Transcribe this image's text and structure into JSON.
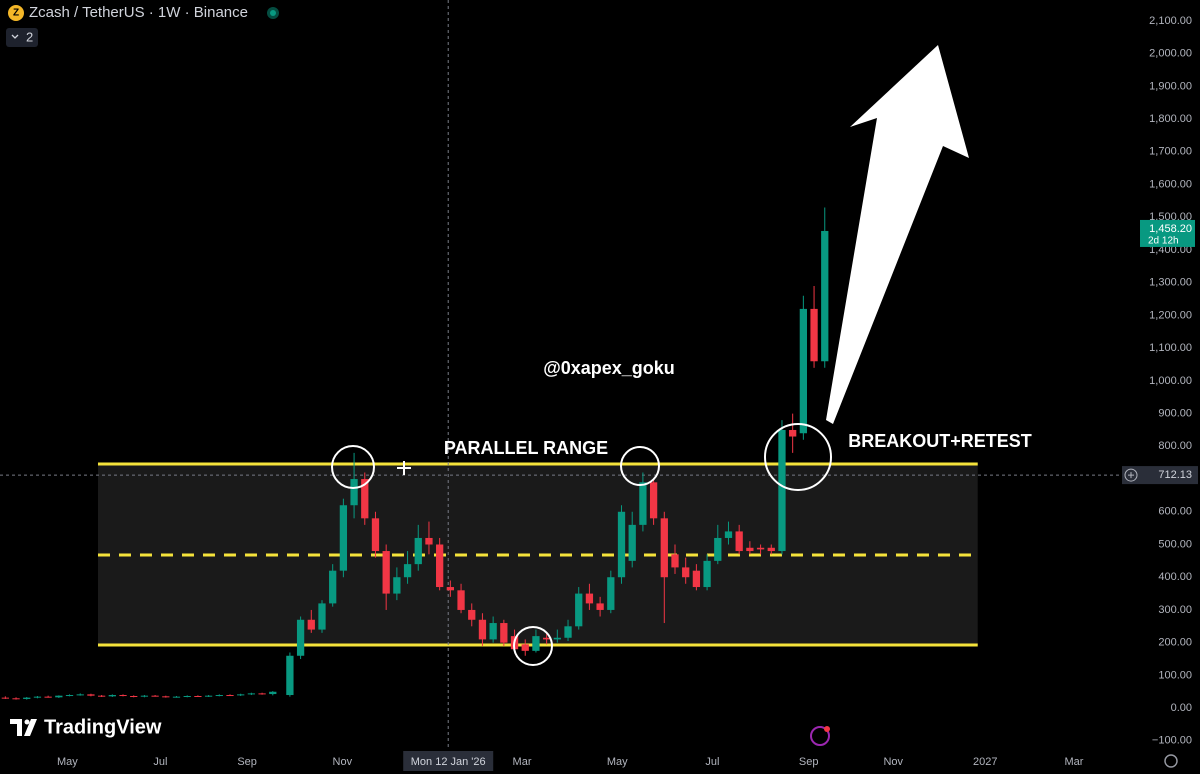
{
  "chart_data": {
    "type": "candlestick",
    "title": "Zcash / TetherUS · 1W · Binance",
    "indicator_count": "2",
    "watermark": "@0xapex_goku",
    "brand": "TradingView",
    "annotations": {
      "range": "PARALLEL RANGE",
      "breakout": "BREAKOUT+RETEST"
    },
    "range_lines": {
      "top": 746,
      "middle": 468,
      "bottom": 193,
      "x_start": 9.16,
      "x_end": 91.4
    },
    "colors": {
      "up": "#089981",
      "down": "#f23645",
      "range": "#f5e33b"
    },
    "xlim": [
      0,
      104.7
    ],
    "xticks": [
      {
        "value": 6.3,
        "label": "May"
      },
      {
        "value": 15.0,
        "label": "Jul"
      },
      {
        "value": 23.1,
        "label": "Sep"
      },
      {
        "value": 32.0,
        "label": "Nov"
      },
      {
        "value": 48.8,
        "label": "Mar"
      },
      {
        "value": 57.7,
        "label": "May"
      },
      {
        "value": 66.6,
        "label": "Jul"
      },
      {
        "value": 75.6,
        "label": "Sep"
      },
      {
        "value": 83.5,
        "label": "Nov"
      },
      {
        "value": 92.1,
        "label": "2027"
      },
      {
        "value": 100.4,
        "label": "Mar"
      }
    ],
    "ylim": [
      -128,
      2164
    ],
    "yticks": [
      {
        "value": 2100,
        "label": "2,100.00"
      },
      {
        "value": 2000,
        "label": "2,000.00"
      },
      {
        "value": 1900,
        "label": "1,900.00"
      },
      {
        "value": 1800,
        "label": "1,800.00"
      },
      {
        "value": 1700,
        "label": "1,700.00"
      },
      {
        "value": 1600,
        "label": "1,600.00"
      },
      {
        "value": 1500,
        "label": "1,500.00"
      },
      {
        "value": 1400,
        "label": "1,400.00"
      },
      {
        "value": 1300,
        "label": "1,300.00"
      },
      {
        "value": 1200,
        "label": "1,200.00"
      },
      {
        "value": 1100,
        "label": "1,100.00"
      },
      {
        "value": 1000,
        "label": "1,000.00"
      },
      {
        "value": 900,
        "label": "900.00"
      },
      {
        "value": 800,
        "label": "800.00"
      },
      {
        "value": 700,
        "label": "700.00"
      },
      {
        "value": 600,
        "label": "600.00"
      },
      {
        "value": 500,
        "label": "500.00"
      },
      {
        "value": 400,
        "label": "400.00"
      },
      {
        "value": 300,
        "label": "300.00"
      },
      {
        "value": 200,
        "label": "200.00"
      },
      {
        "value": 100,
        "label": "100.00"
      },
      {
        "value": 0,
        "label": "0.00"
      },
      {
        "value": -100,
        "label": "−100.00"
      }
    ],
    "crosshair": {
      "x": 41.9,
      "x_label": "Mon 12 Jan '26",
      "y": 712.13
    },
    "last_price": {
      "value": 1458.2,
      "label": "1,458.20",
      "countdown": "2d 12h"
    },
    "x": [
      0.5,
      1.5,
      2.5,
      3.5,
      4.5,
      5.5,
      6.5,
      7.5,
      8.5,
      9.5,
      10.5,
      11.5,
      12.5,
      13.5,
      14.5,
      15.5,
      16.5,
      17.5,
      18.5,
      19.5,
      20.5,
      21.5,
      22.5,
      23.5,
      24.5,
      25.5,
      27.1,
      28.1,
      29.1,
      30.1,
      31.1,
      32.1,
      33.1,
      34.1,
      35.1,
      36.1,
      37.1,
      38.1,
      39.1,
      40.1,
      41.1,
      42.1,
      43.1,
      44.1,
      45.1,
      46.1,
      47.1,
      48.1,
      49.1,
      50.1,
      51.1,
      52.1,
      53.1,
      54.1,
      55.1,
      56.1,
      57.1,
      58.1,
      59.1,
      60.1,
      61.1,
      62.1,
      63.1,
      64.1,
      65.1,
      66.1,
      67.1,
      68.1,
      69.1,
      70.1,
      71.1,
      72.1,
      73.1,
      74.1,
      75.1,
      76.1,
      77.1
    ],
    "open": [
      32,
      30,
      28,
      32,
      35,
      33,
      38,
      40,
      42,
      38,
      36,
      40,
      37,
      35,
      38,
      36,
      34,
      35,
      37,
      36,
      38,
      40,
      39,
      42,
      45,
      43,
      40,
      160,
      270,
      240,
      320,
      420,
      620,
      700,
      580,
      480,
      350,
      400,
      440,
      520,
      500,
      370,
      360,
      300,
      270,
      210,
      260,
      220,
      195,
      175,
      215,
      210,
      215,
      250,
      350,
      320,
      300,
      400,
      450,
      560,
      690,
      580,
      470,
      430,
      420,
      370,
      450,
      520,
      540,
      490,
      490,
      490,
      480,
      850,
      840,
      1220,
      1060
    ],
    "high": [
      36,
      33,
      34,
      37,
      38,
      39,
      42,
      45,
      44,
      40,
      42,
      42,
      39,
      40,
      40,
      38,
      37,
      39,
      39,
      40,
      42,
      42,
      44,
      47,
      47,
      52,
      170,
      280,
      300,
      330,
      440,
      640,
      780,
      720,
      600,
      500,
      430,
      480,
      560,
      570,
      520,
      390,
      380,
      320,
      290,
      280,
      270,
      240,
      210,
      240,
      230,
      240,
      270,
      370,
      380,
      340,
      420,
      620,
      600,
      720,
      700,
      600,
      500,
      460,
      440,
      470,
      560,
      570,
      560,
      510,
      500,
      500,
      880,
      900,
      1260,
      1290,
      1530
    ],
    "low": [
      28,
      26,
      26,
      30,
      32,
      31,
      36,
      38,
      36,
      34,
      34,
      36,
      33,
      33,
      35,
      32,
      32,
      33,
      34,
      34,
      36,
      37,
      37,
      40,
      41,
      39,
      35,
      150,
      230,
      230,
      310,
      400,
      580,
      560,
      460,
      300,
      330,
      380,
      420,
      470,
      360,
      340,
      290,
      250,
      190,
      200,
      190,
      170,
      160,
      170,
      195,
      200,
      205,
      240,
      300,
      280,
      290,
      380,
      430,
      540,
      560,
      260,
      410,
      380,
      360,
      360,
      440,
      500,
      470,
      470,
      470,
      470,
      470,
      780,
      820,
      1040,
      1040
    ],
    "close": [
      30,
      28,
      32,
      35,
      33,
      38,
      40,
      42,
      38,
      36,
      40,
      37,
      35,
      38,
      36,
      34,
      35,
      37,
      36,
      38,
      40,
      39,
      42,
      45,
      43,
      50,
      160,
      270,
      240,
      320,
      420,
      620,
      700,
      580,
      480,
      350,
      400,
      440,
      520,
      500,
      370,
      360,
      300,
      270,
      210,
      260,
      200,
      180,
      175,
      220,
      210,
      215,
      250,
      350,
      320,
      300,
      400,
      600,
      560,
      690,
      580,
      400,
      430,
      400,
      370,
      450,
      520,
      540,
      480,
      480,
      485,
      480,
      850,
      830,
      1220,
      1060,
      1458.2
    ]
  }
}
